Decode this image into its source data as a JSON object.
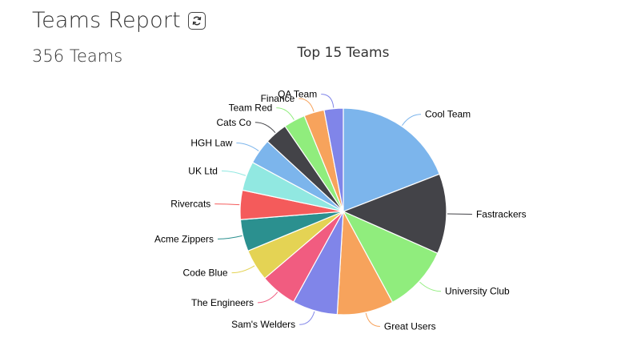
{
  "header": {
    "title": "Teams Report",
    "refresh_icon": "refresh-icon"
  },
  "summary": {
    "count_text": "356 Teams"
  },
  "chart_data": {
    "type": "pie",
    "title": "Top 15 Teams",
    "slices": [
      {
        "label": "Cool Team",
        "value": 19.2,
        "color": "#7cb5ec"
      },
      {
        "label": "Fastrackers",
        "value": 12.6,
        "color": "#434348"
      },
      {
        "label": "University Club",
        "value": 10.5,
        "color": "#90ed7d"
      },
      {
        "label": "Great Users",
        "value": 8.9,
        "color": "#f7a35c"
      },
      {
        "label": "Sam's Welders",
        "value": 7.1,
        "color": "#8085e9"
      },
      {
        "label": "The Engineers",
        "value": 5.8,
        "color": "#f15c80"
      },
      {
        "label": "Code Blue",
        "value": 5.0,
        "color": "#e4d354"
      },
      {
        "label": "Acme Zippers",
        "value": 5.0,
        "color": "#2b908f"
      },
      {
        "label": "Rivercats",
        "value": 4.6,
        "color": "#f45b5b"
      },
      {
        "label": "UK Ltd",
        "value": 4.6,
        "color": "#91e8e1"
      },
      {
        "label": "HGH Law",
        "value": 4.0,
        "color": "#7cb5ec"
      },
      {
        "label": "Cats Co",
        "value": 3.6,
        "color": "#434348"
      },
      {
        "label": "Team Red",
        "value": 3.4,
        "color": "#90ed7d"
      },
      {
        "label": "Finance",
        "value": 3.2,
        "color": "#f7a35c"
      },
      {
        "label": "QA Team",
        "value": 3.0,
        "color": "#8085e9"
      }
    ]
  }
}
